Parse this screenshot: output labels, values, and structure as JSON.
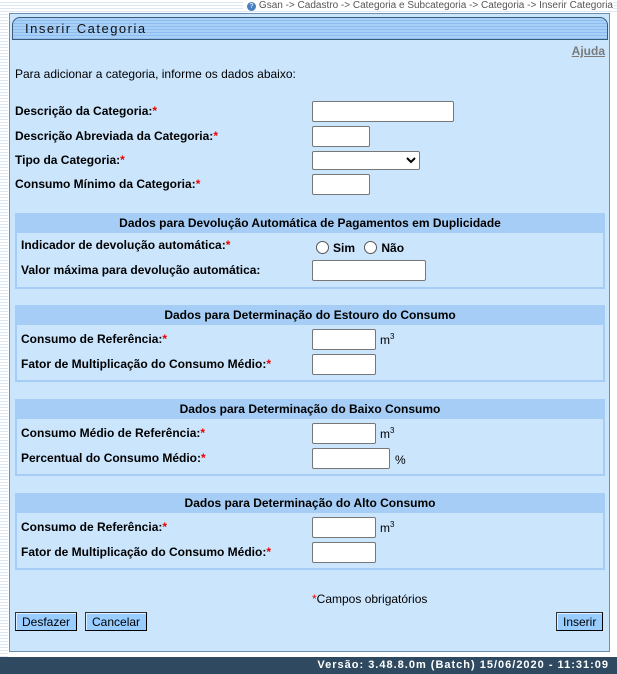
{
  "breadcrumb": "Gsan -> Cadastro -> Categoria e Subcategoria -> Categoria -> Inserir Categoria",
  "title": "Inserir Categoria",
  "help": "Ajuda",
  "intro": "Para adicionar a categoria, informe os dados abaixo:",
  "req": "*",
  "fields": {
    "descricao": "Descrição da Categoria:",
    "abreviada": "Descrição Abreviada da Categoria:",
    "tipo": "Tipo da Categoria:",
    "consumo_minimo": "Consumo Mínimo da Categoria:"
  },
  "tipo_selected": "",
  "s1": {
    "title": "Dados para Devolução Automática de Pagamentos em Duplicidade",
    "indicador": "Indicador de devolução automática:",
    "sim": "Sim",
    "nao": "Não",
    "valor": "Valor máxima para devolução automática:"
  },
  "s2": {
    "title": "Dados para Determinação do Estouro do Consumo",
    "ref": "Consumo de Referência:",
    "fator": "Fator de Multiplicação do Consumo Médio:"
  },
  "s3": {
    "title": "Dados para Determinação do Baixo Consumo",
    "ref": "Consumo Médio de Referência:",
    "perc": "Percentual do Consumo Médio:"
  },
  "s4": {
    "title": "Dados para Determinação do Alto Consumo",
    "ref": "Consumo de Referência:",
    "fator": "Fator de Multiplicação do Consumo Médio:"
  },
  "unit_m": "m",
  "unit_exp": "3",
  "unit_pct": "%",
  "required_note": "Campos obrigatórios",
  "buttons": {
    "desfazer": "Desfazer",
    "cancelar": "Cancelar",
    "inserir": "Inserir"
  },
  "version": "Versão: 3.48.8.0m (Batch) 15/06/2020 - 11:31:09"
}
